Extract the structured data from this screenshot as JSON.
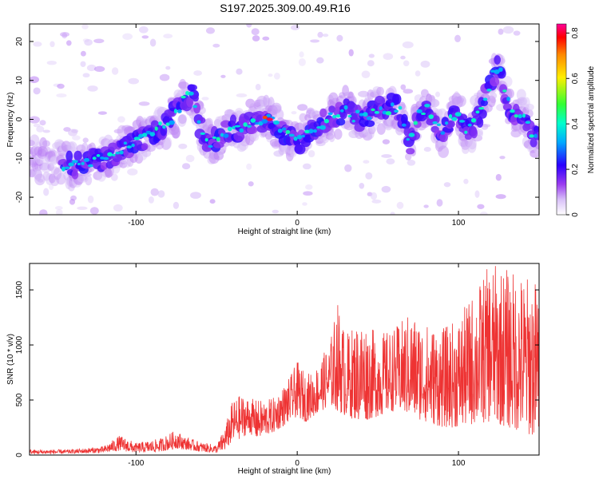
{
  "figure_title": "S197.2025.309.00.49.R16",
  "chart_data": [
    {
      "type": "heatmap",
      "title": "S197.2025.309.00.49.R16",
      "xlabel": "Height of straight line (km)",
      "ylabel": "Frequency (Hz)",
      "xlim": [
        -166,
        150
      ],
      "ylim": [
        -24.5,
        24.5
      ],
      "xticks": [
        -100,
        0,
        100
      ],
      "yticks": [
        -20,
        -10,
        0,
        10,
        20
      ],
      "colorbar": {
        "label": "Normalized spectral amplitude",
        "range": [
          0.0,
          0.84
        ],
        "ticks": [
          0.0,
          0.2,
          0.4,
          0.6,
          0.8
        ],
        "colormap": [
          "#ffffff",
          "#d8c0f8",
          "#9a3cf0",
          "#2a00ff",
          "#00aaff",
          "#00ffcc",
          "#33ff33",
          "#ffee00",
          "#ff8800",
          "#ff0000",
          "#ff0099"
        ]
      },
      "ridge": {
        "x": [
          -166,
          -150,
          -140,
          -130,
          -120,
          -110,
          -100,
          -90,
          -80,
          -75,
          -70,
          -65,
          -60,
          -55,
          -50,
          -45,
          -40,
          -35,
          -30,
          -25,
          -20,
          -15,
          -10,
          -5,
          0,
          5,
          10,
          15,
          20,
          25,
          30,
          35,
          40,
          45,
          50,
          55,
          60,
          65,
          70,
          75,
          80,
          85,
          90,
          95,
          100,
          105,
          110,
          115,
          120,
          125,
          130,
          135,
          140,
          145,
          150
        ],
        "y": [
          -10,
          -11,
          -12,
          -11,
          -10,
          -8,
          -6,
          -4,
          -1,
          2,
          5,
          6,
          -2,
          -6,
          -5,
          -3,
          -2,
          -3,
          -1,
          0,
          0,
          -1,
          -3,
          -5,
          -6,
          -4,
          -2,
          -1,
          0,
          1,
          3,
          1,
          0,
          1,
          3,
          2,
          4,
          1,
          -6,
          1,
          4,
          0,
          -4,
          0,
          2,
          -4,
          -1,
          3,
          10,
          14,
          5,
          0,
          2,
          -3,
          -5
        ]
      },
      "peak": {
        "x": -17,
        "y": 0,
        "value": 0.84
      }
    },
    {
      "type": "line",
      "xlabel": "Height of straight line (km)",
      "ylabel": "SNR (10 * v/v)",
      "xlim": [
        -166,
        150
      ],
      "ylim": [
        0,
        1740
      ],
      "xticks": [
        -100,
        0,
        100
      ],
      "yticks": [
        0,
        500,
        1000,
        1500
      ],
      "series": [
        {
          "name": "SNR",
          "color": "#ee3333",
          "envelope": {
            "x": [
              -166,
              -140,
              -120,
              -110,
              -100,
              -85,
              -75,
              -70,
              -60,
              -50,
              -45,
              -40,
              -35,
              -30,
              -25,
              -20,
              -15,
              -10,
              -5,
              0,
              5,
              10,
              15,
              20,
              25,
              30,
              40,
              50,
              60,
              70,
              80,
              90,
              100,
              110,
              120,
              130,
              140,
              150
            ],
            "low": [
              10,
              15,
              20,
              40,
              20,
              30,
              60,
              50,
              30,
              20,
              40,
              120,
              150,
              200,
              150,
              180,
              200,
              250,
              300,
              350,
              300,
              350,
              400,
              450,
              400,
              350,
              300,
              350,
              400,
              350,
              300,
              250,
              250,
              280,
              300,
              250,
              200,
              150
            ],
            "high": [
              50,
              50,
              80,
              180,
              110,
              150,
              230,
              170,
              120,
              90,
              250,
              500,
              550,
              520,
              500,
              500,
              520,
              600,
              700,
              850,
              750,
              750,
              900,
              1000,
              1400,
              1100,
              1250,
              1100,
              1150,
              1300,
              1200,
              1150,
              1250,
              1500,
              1750,
              1700,
              1650,
              1600
            ]
          }
        }
      ]
    }
  ]
}
